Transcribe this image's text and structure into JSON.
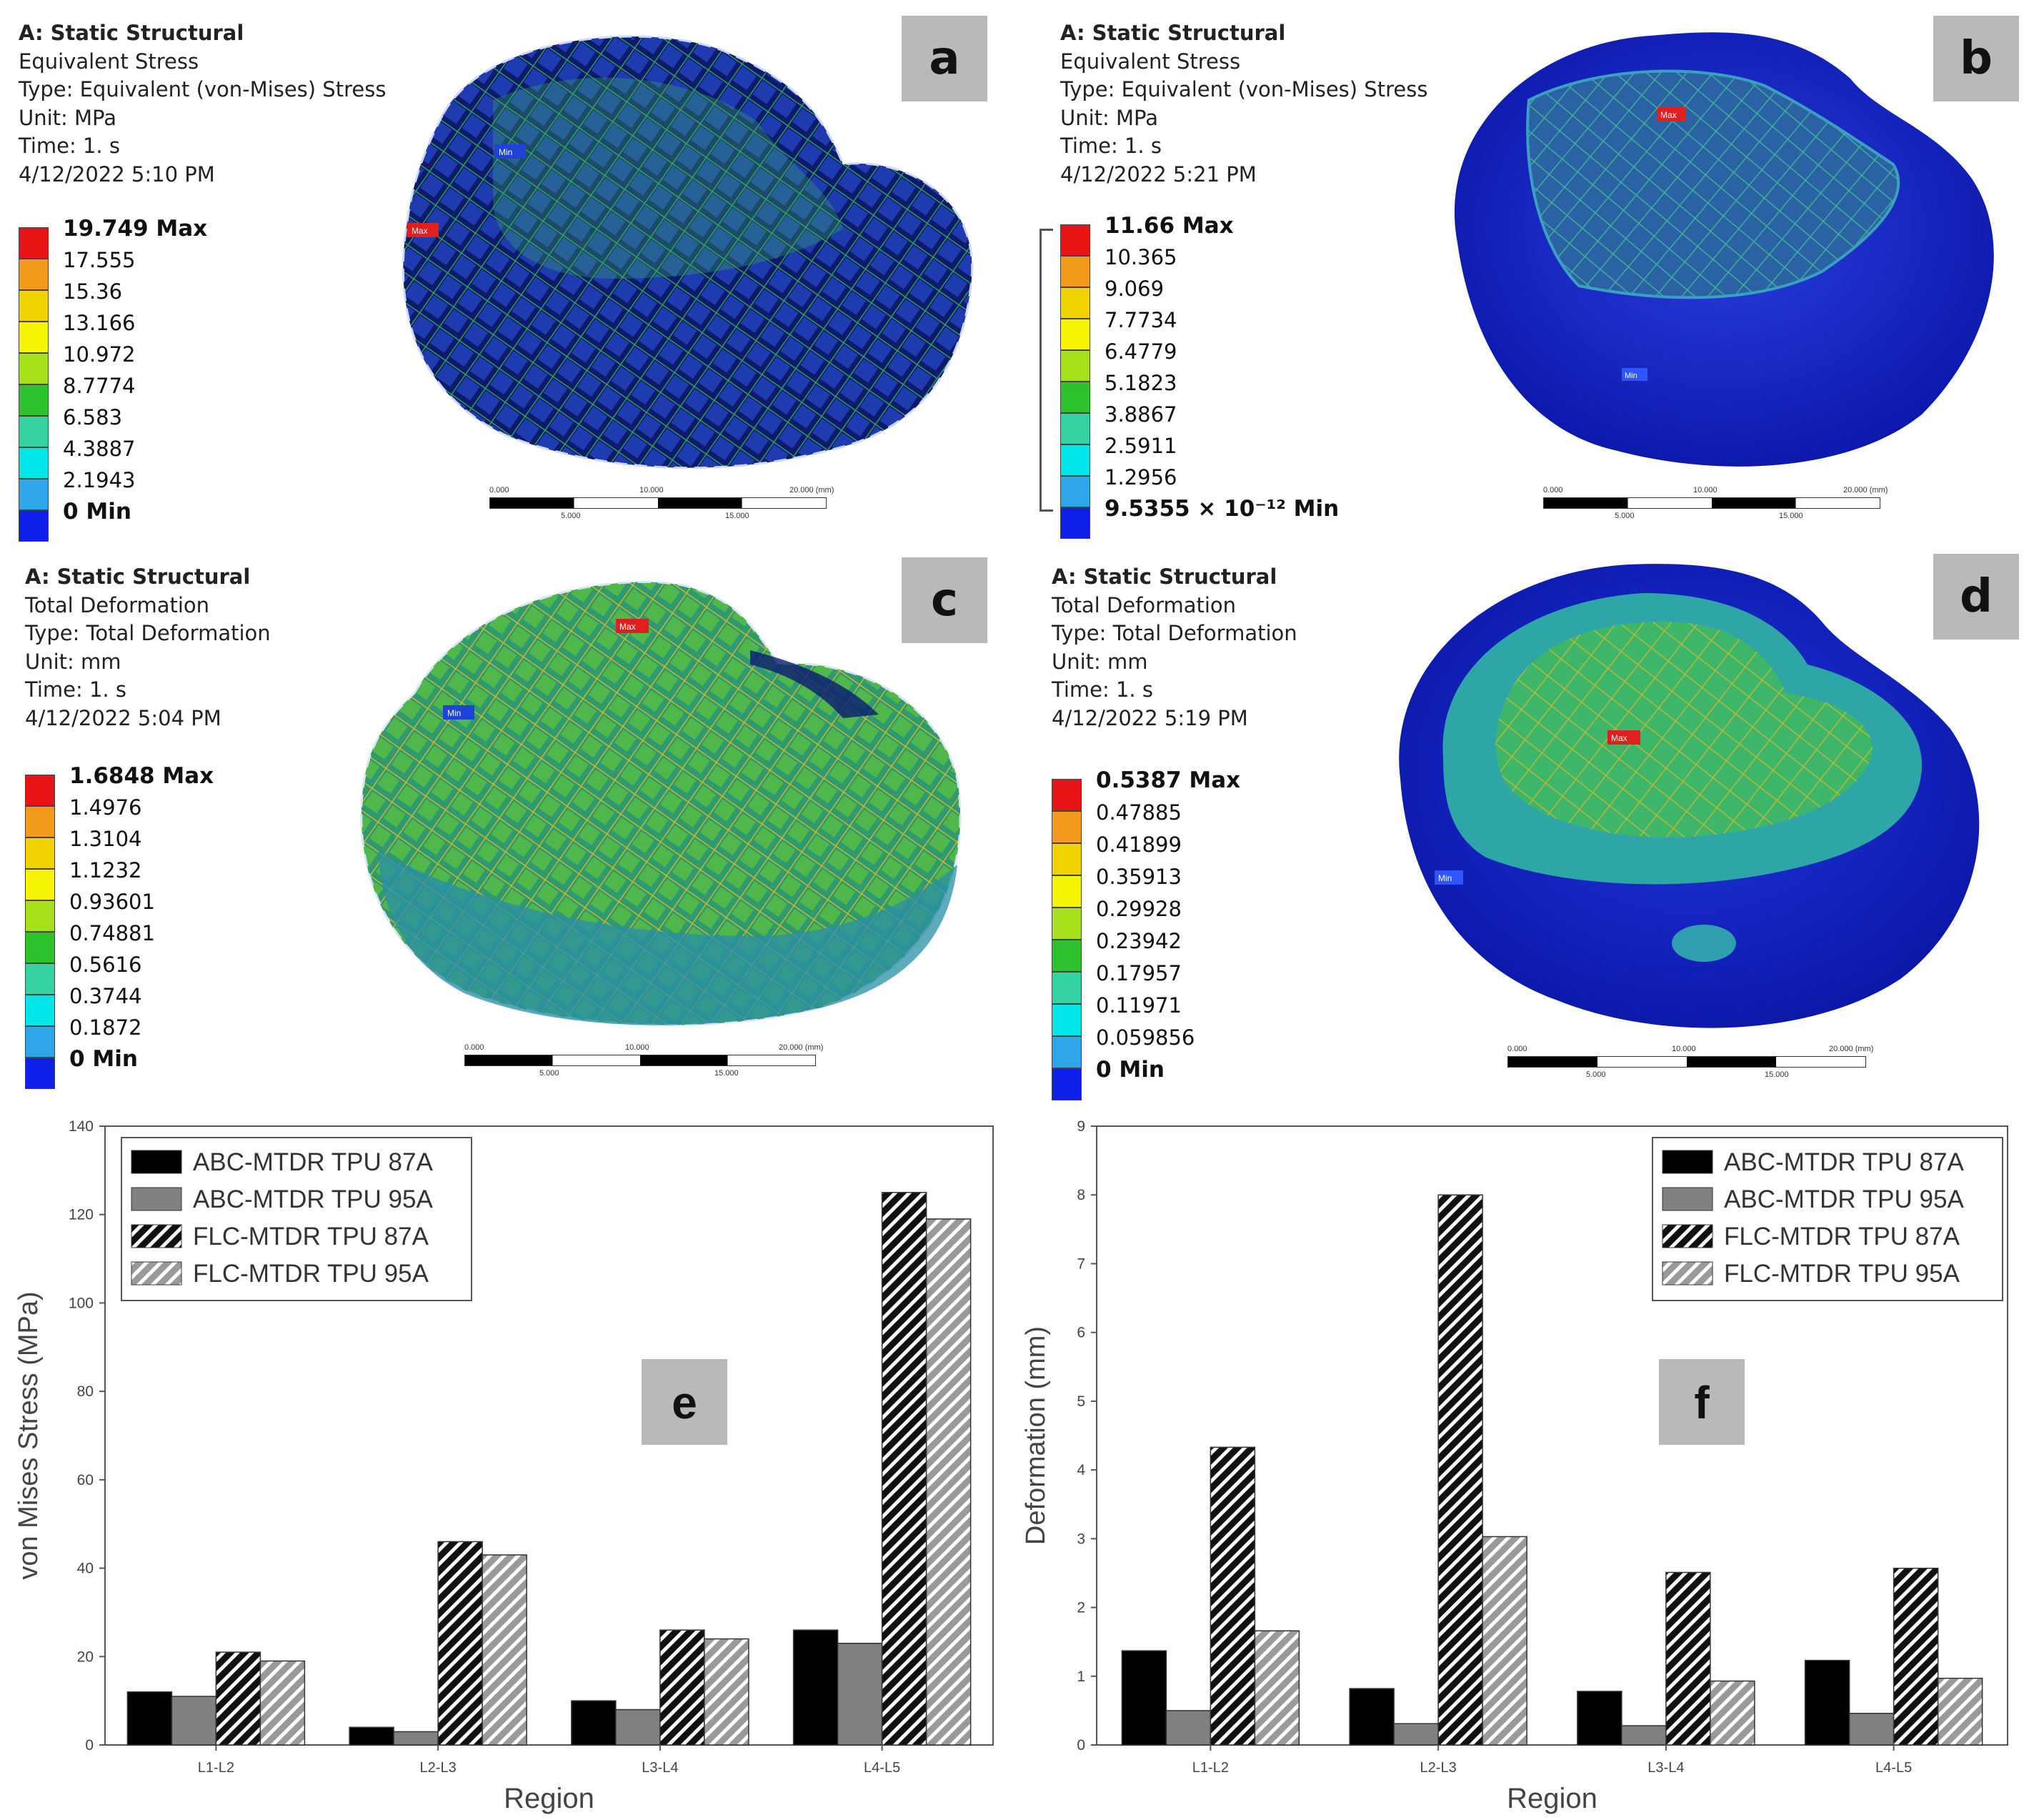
{
  "panels": [
    {
      "id": "a",
      "title": "A: Static Structural",
      "lines": [
        "Equivalent Stress",
        "Type: Equivalent (von-Mises) Stress",
        "Unit: MPa",
        "Time: 1. s",
        "4/12/2022 5:10 PM"
      ],
      "legend": [
        "19.749 Max",
        "17.555",
        "15.36",
        "13.166",
        "10.972",
        "8.7774",
        "6.583",
        "4.3887",
        "2.1943",
        "0 Min"
      ],
      "max_label": "Max",
      "min_label": "Min",
      "scale": [
        "0.000",
        "10.000",
        "20.000 (mm)",
        "5.000",
        "15.000"
      ]
    },
    {
      "id": "b",
      "title": "A: Static Structural",
      "lines": [
        "Equivalent Stress",
        "Type: Equivalent (von-Mises) Stress",
        "Unit: MPa",
        "Time: 1. s",
        "4/12/2022 5:21 PM"
      ],
      "legend": [
        "11.66 Max",
        "10.365",
        "9.069",
        "7.7734",
        "6.4779",
        "5.1823",
        "3.8867",
        "2.5911",
        "1.2956",
        "9.5355 × 10⁻¹² Min"
      ],
      "max_label": "Max",
      "min_label": "Min",
      "scale": [
        "0.000",
        "10.000",
        "20.000 (mm)",
        "5.000",
        "15.000"
      ]
    },
    {
      "id": "c",
      "title": "A: Static Structural",
      "lines": [
        "Total Deformation",
        "Type: Total Deformation",
        "Unit: mm",
        "Time: 1. s",
        "4/12/2022 5:04 PM"
      ],
      "legend": [
        "1.6848 Max",
        "1.4976",
        "1.3104",
        "1.1232",
        "0.93601",
        "0.74881",
        "0.5616",
        "0.3744",
        "0.1872",
        "0 Min"
      ],
      "max_label": "Max",
      "min_label": "Min",
      "scale": [
        "0.000",
        "10.000",
        "20.000 (mm)",
        "5.000",
        "15.000"
      ]
    },
    {
      "id": "d",
      "title": "A: Static Structural",
      "lines": [
        "Total Deformation",
        "Type: Total Deformation",
        "Unit: mm",
        "Time: 1. s",
        "4/12/2022 5:19 PM"
      ],
      "legend": [
        "0.5387 Max",
        "0.47885",
        "0.41899",
        "0.35913",
        "0.29928",
        "0.23942",
        "0.17957",
        "0.11971",
        "0.059856",
        "0 Min"
      ],
      "max_label": "Max",
      "min_label": "Min",
      "scale": [
        "0.000",
        "10.000",
        "20.000 (mm)",
        "5.000",
        "15.000"
      ]
    }
  ],
  "colors": {
    "legend": [
      "#e81416",
      "#f39a1b",
      "#f1d300",
      "#f6f400",
      "#a6e11c",
      "#2ec32e",
      "#35d3a3",
      "#00e6e9",
      "#2da6ea",
      "#0d1fe8"
    ],
    "mesh_dark": "#0b1561",
    "mesh_blue": "#1b2fc4",
    "mesh_green": "#37b24a",
    "mesh_cyan": "#2aa7b5"
  },
  "chart_data": [
    {
      "id": "e",
      "type": "bar",
      "categories": [
        "L1-L2",
        "L2-L3",
        "L3-L4",
        "L4-L5"
      ],
      "series": [
        {
          "name": "ABC-MTDR TPU 87A",
          "values": [
            12,
            4,
            10,
            26
          ],
          "style": "solid-black"
        },
        {
          "name": "ABC-MTDR TPU 95A",
          "values": [
            11,
            3,
            8,
            23
          ],
          "style": "solid-grey"
        },
        {
          "name": "FLC-MTDR TPU 87A",
          "values": [
            21,
            46,
            26,
            125
          ],
          "style": "hatch-black"
        },
        {
          "name": "FLC-MTDR TPU 95A",
          "values": [
            19,
            43,
            24,
            119
          ],
          "style": "hatch-grey"
        }
      ],
      "title": "",
      "xlabel": "Region",
      "ylabel": "von Mises Stress (MPa)",
      "ylim": [
        0,
        140
      ],
      "yticks": [
        "0",
        "20",
        "40",
        "60",
        "80",
        "100",
        "120",
        "140"
      ],
      "legend": "top-left",
      "tag": "e"
    },
    {
      "id": "f",
      "type": "bar",
      "categories": [
        "L1-L2",
        "L2-L3",
        "L3-L4",
        "L4-L5"
      ],
      "series": [
        {
          "name": "ABC-MTDR TPU 87A",
          "values": [
            1.37,
            0.82,
            0.78,
            1.23
          ],
          "style": "solid-black"
        },
        {
          "name": "ABC-MTDR TPU 95A",
          "values": [
            0.5,
            0.31,
            0.28,
            0.46
          ],
          "style": "solid-grey"
        },
        {
          "name": "FLC-MTDR TPU 87A",
          "values": [
            4.33,
            8.0,
            2.51,
            2.57
          ],
          "style": "hatch-black"
        },
        {
          "name": "FLC-MTDR TPU 95A",
          "values": [
            1.66,
            3.03,
            0.93,
            0.97
          ],
          "style": "hatch-grey"
        }
      ],
      "title": "",
      "xlabel": "Region",
      "ylabel": "Deformation (mm)",
      "ylim": [
        0,
        9
      ],
      "yticks": [
        "0",
        "1",
        "2",
        "3",
        "4",
        "5",
        "6",
        "7",
        "8",
        "9"
      ],
      "legend": "top-right",
      "tag": "f"
    }
  ]
}
